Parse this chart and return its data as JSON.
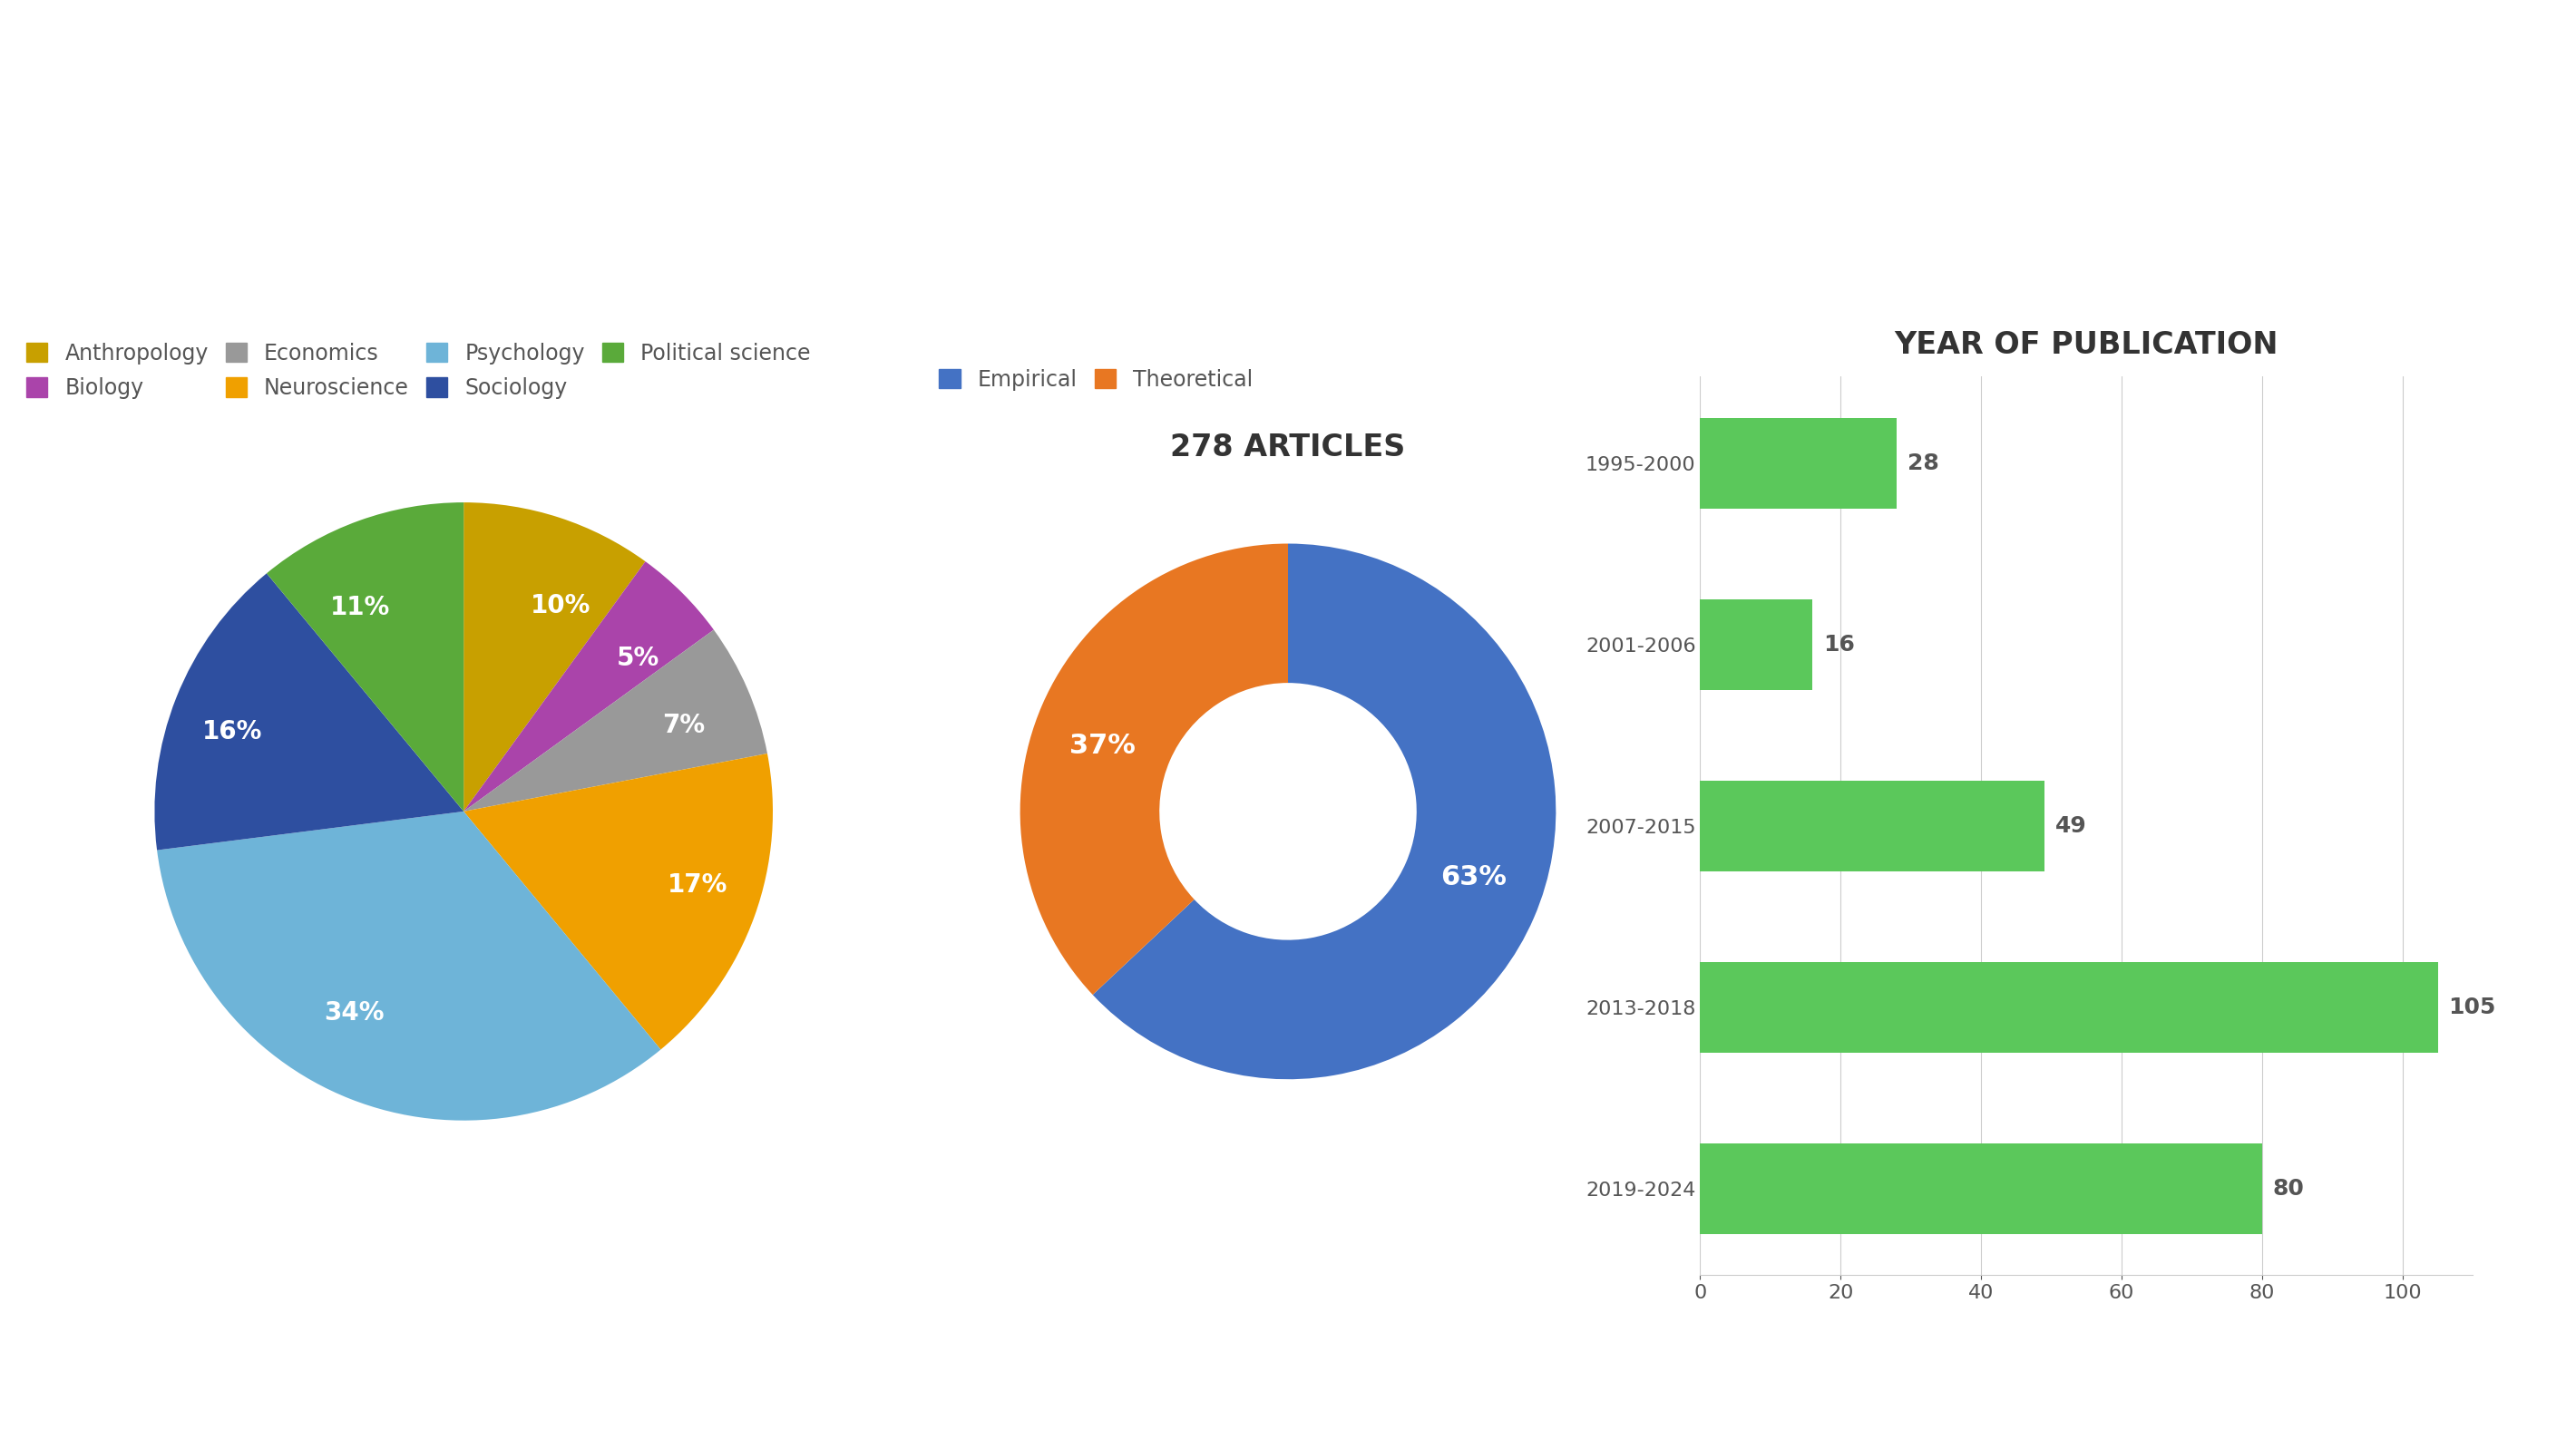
{
  "pie_labels": [
    "Anthropology",
    "Biology",
    "Economics",
    "Neuroscience",
    "Psychology",
    "Sociology",
    "Political science"
  ],
  "pie_values": [
    10,
    5,
    7,
    17,
    34,
    16,
    11
  ],
  "pie_colors": [
    "#C8A000",
    "#AA44AA",
    "#999999",
    "#F0A000",
    "#6EB4D8",
    "#2E4FA0",
    "#5AAA3A"
  ],
  "donut_labels": [
    "Empirical",
    "Theoretical"
  ],
  "donut_values": [
    63,
    37
  ],
  "donut_colors": [
    "#4472C4",
    "#E87722"
  ],
  "donut_title": "278 ARTICLES",
  "bar_categories": [
    "1995-2000",
    "2001-2006",
    "2007-2015",
    "2013-2018",
    "2019-2024"
  ],
  "bar_values": [
    28,
    16,
    49,
    105,
    80
  ],
  "bar_color": "#5BC85B",
  "bar_title": "YEAR OF PUBLICATION",
  "background_color": "#FFFFFF",
  "text_color": "#555555",
  "pie_label_fontsize": 20,
  "donut_label_fontsize": 22,
  "title_fontsize": 24,
  "legend_fontsize": 17,
  "bar_label_fontsize": 18,
  "bar_tick_fontsize": 16
}
